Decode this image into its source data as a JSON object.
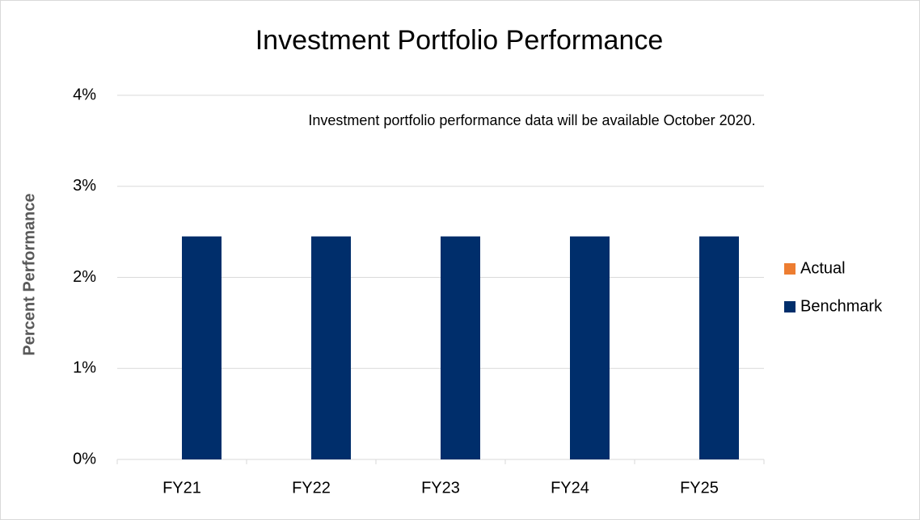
{
  "chart_data": {
    "type": "bar",
    "title": "Investment Portfolio Performance",
    "y_label": "Percent Performance",
    "annotation": "Investment portfolio performance data will be available October 2020.",
    "categories": [
      "FY21",
      "FY22",
      "FY23",
      "FY24",
      "FY25"
    ],
    "series": [
      {
        "name": "Actual",
        "color": "#ed7d31",
        "values": [
          null,
          null,
          null,
          null,
          null
        ]
      },
      {
        "name": "Benchmark",
        "color": "#002e6b",
        "values": [
          2.45,
          2.45,
          2.45,
          2.45,
          2.45
        ]
      }
    ],
    "ylim": [
      0,
      4
    ],
    "yticks": [
      {
        "value": 0,
        "label": "0%"
      },
      {
        "value": 1,
        "label": "1%"
      },
      {
        "value": 2,
        "label": "2%"
      },
      {
        "value": 3,
        "label": "3%"
      },
      {
        "value": 4,
        "label": "4%"
      }
    ],
    "grid": true,
    "legend": "right"
  }
}
